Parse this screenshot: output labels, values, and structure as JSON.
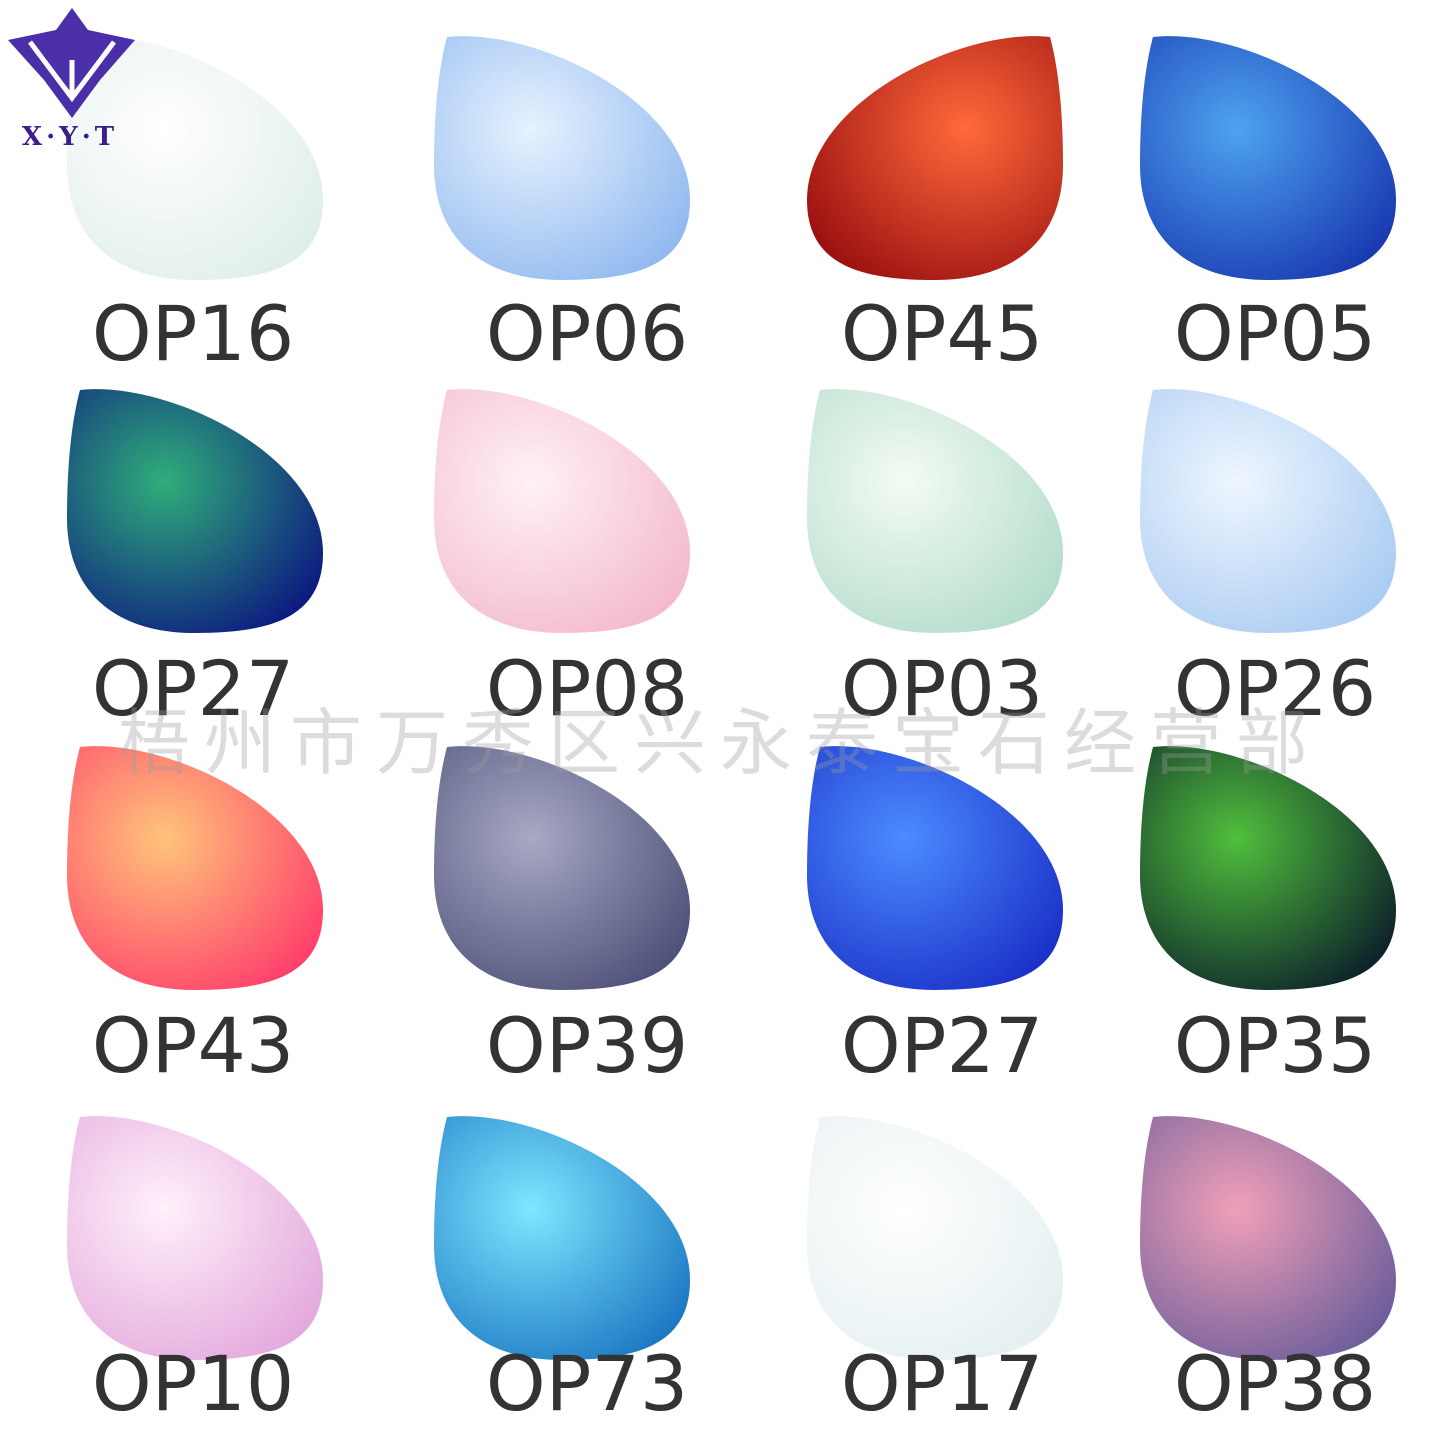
{
  "logo": {
    "text": "X·Y·T"
  },
  "watermark": "梧州市万秀区兴永泰宝石经营部",
  "items": [
    {
      "label": "OP16",
      "colors": [
        "#ffffff",
        "#dfeeea"
      ]
    },
    {
      "label": "OP06",
      "colors": [
        "#e6f2ff",
        "#8fb8ef"
      ]
    },
    {
      "label": "OP45",
      "colors": [
        "#ff6a3a",
        "#9a0f10"
      ]
    },
    {
      "label": "OP05",
      "colors": [
        "#4da3f0",
        "#1838b0"
      ]
    },
    {
      "label": "OP27",
      "colors": [
        "#2fae7a",
        "#0c1780"
      ]
    },
    {
      "label": "OP08",
      "colors": [
        "#fff1f5",
        "#f3b9cc"
      ]
    },
    {
      "label": "OP03",
      "colors": [
        "#f3fbf4",
        "#b3dccb"
      ]
    },
    {
      "label": "OP26",
      "colors": [
        "#eef6ff",
        "#a9cbf2"
      ]
    },
    {
      "label": "OP43",
      "colors": [
        "#ffc47a",
        "#ff3d6b"
      ]
    },
    {
      "label": "OP39",
      "colors": [
        "#a7a9c4",
        "#4d4f78"
      ]
    },
    {
      "label": "OP27",
      "colors": [
        "#4b8cff",
        "#1a2fc6"
      ]
    },
    {
      "label": "OP35",
      "colors": [
        "#4fbf3c",
        "#0c1f2a"
      ]
    },
    {
      "label": "OP10",
      "colors": [
        "#fff0fa",
        "#e3a8dc"
      ]
    },
    {
      "label": "OP73",
      "colors": [
        "#7fe6ff",
        "#1a76c2"
      ]
    },
    {
      "label": "OP17",
      "colors": [
        "#ffffff",
        "#e4eff0"
      ]
    },
    {
      "label": "OP38",
      "colors": [
        "#f0a0b8",
        "#6b5c9a"
      ]
    }
  ]
}
